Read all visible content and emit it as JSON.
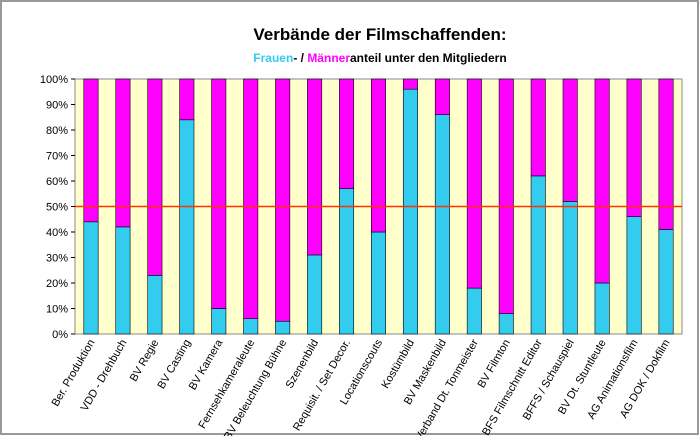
{
  "chart_data": {
    "type": "stacked_bar",
    "title": "Verbände der Filmschaffenden:",
    "subtitle_joins": [
      "- / ",
      "anteil unter den Mitgliedern"
    ],
    "categories": [
      "Ber. Produktion",
      "VDD - Drehbuch",
      "BV Regie",
      "BV Casting",
      "BV Kamera",
      "Fernsehkameraleute",
      "BV Beleuchtung Bühne",
      "Szenenbild",
      "Requisit. / Set Decor.",
      "Locationscouts",
      "Kostümbild",
      "BV Maskenbild",
      "Verband Dt. Tonmeister",
      "BV Filmton",
      "BFS Filmschnitt Editor",
      "BFFS / Schauspiel",
      "BV Dt. Stuntleute",
      "AG Animationsfilm",
      "AG DOK / Dokfilm"
    ],
    "series": [
      {
        "name": "Frauen",
        "color": "#33ccee",
        "values": [
          44,
          42,
          23,
          84,
          10,
          6,
          5,
          31,
          57,
          40,
          96,
          86,
          18,
          8,
          62,
          52,
          20,
          46,
          41
        ]
      },
      {
        "name": "Männer",
        "color": "#ff00ff",
        "values": [
          56,
          58,
          77,
          16,
          90,
          94,
          95,
          69,
          43,
          60,
          4,
          14,
          82,
          92,
          38,
          48,
          80,
          54,
          59
        ]
      }
    ],
    "ylim": [
      0,
      100
    ],
    "yticks": [
      {
        "value": 0,
        "label": "0%"
      },
      {
        "value": 10,
        "label": "10%"
      },
      {
        "value": 20,
        "label": "20%"
      },
      {
        "value": 30,
        "label": "30%"
      },
      {
        "value": 40,
        "label": "40%"
      },
      {
        "value": 50,
        "label": "50%"
      },
      {
        "value": 60,
        "label": "60%"
      },
      {
        "value": 70,
        "label": "70%"
      },
      {
        "value": 80,
        "label": "80%"
      },
      {
        "value": 90,
        "label": "90%"
      },
      {
        "value": 100,
        "label": "100%"
      }
    ],
    "reference_line": {
      "value": 50,
      "color": "#ff3300"
    },
    "plot_background": "#ffffcc"
  }
}
